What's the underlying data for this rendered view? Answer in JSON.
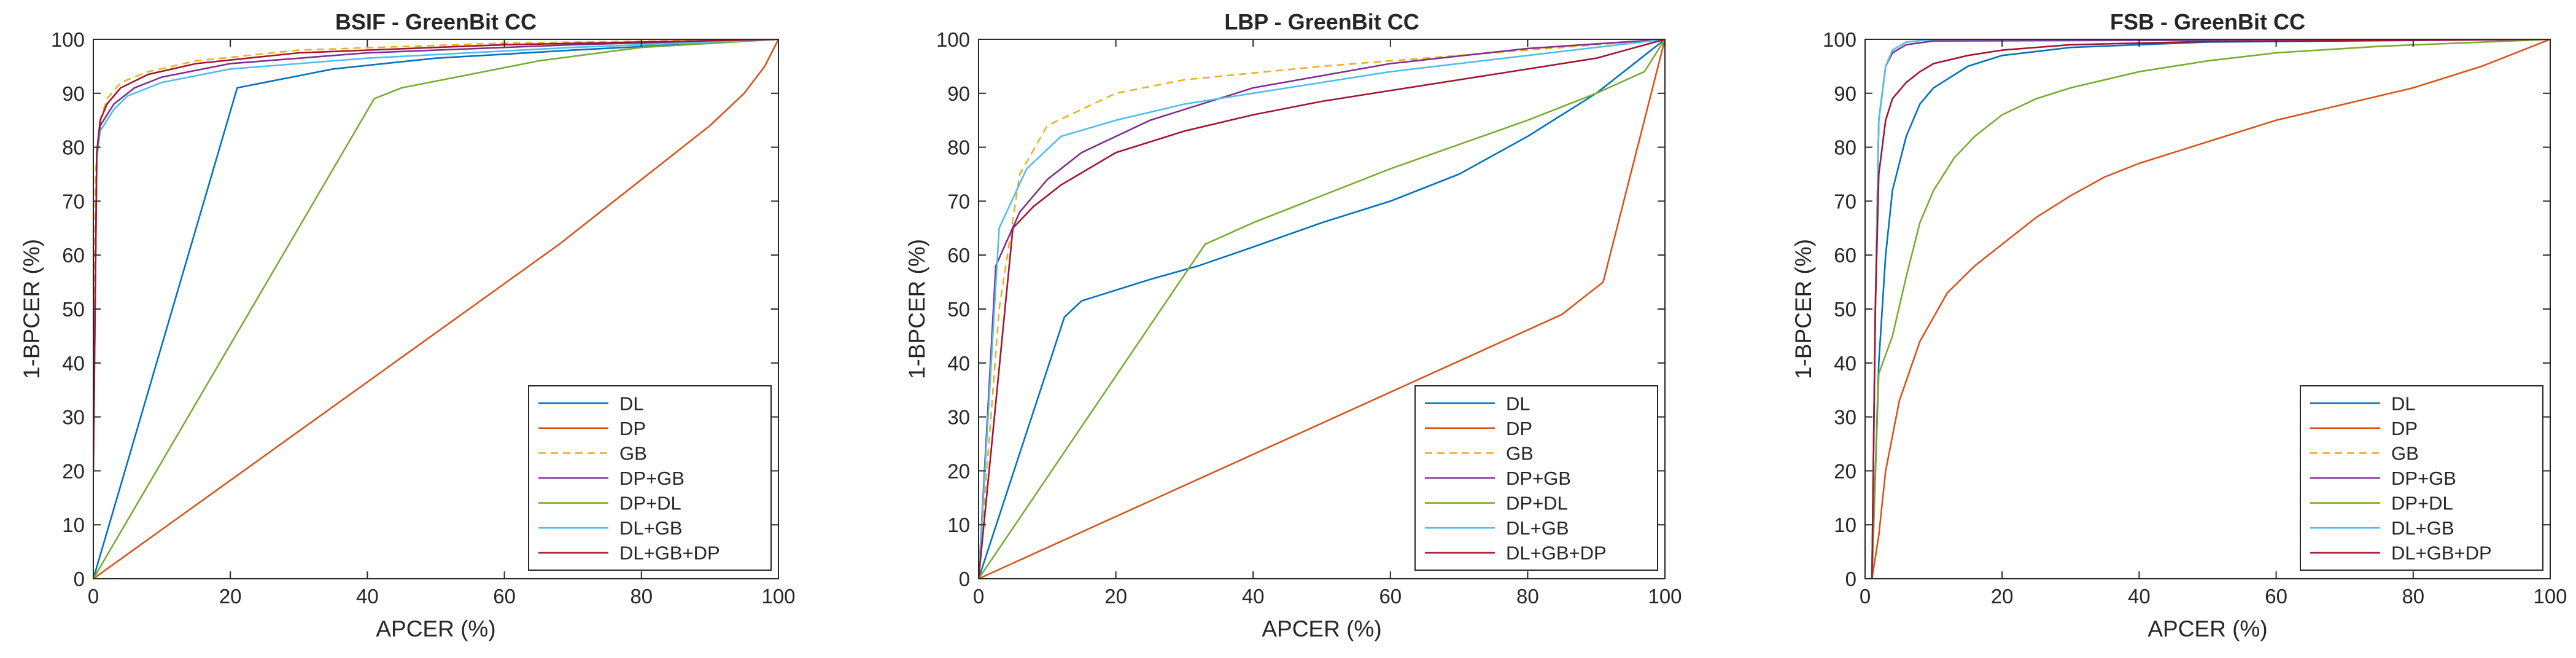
{
  "chart_data": [
    {
      "type": "line",
      "title": "BSIF - GreenBit CC",
      "xlabel": "APCER (%)",
      "ylabel": "1-BPCER (%)",
      "xlim": [
        0,
        100
      ],
      "ylim": [
        0,
        100
      ],
      "xticks": [
        0,
        20,
        40,
        60,
        80,
        100
      ],
      "yticks": [
        0,
        10,
        20,
        30,
        40,
        50,
        60,
        70,
        80,
        90,
        100
      ],
      "legend_position": "bottom-right",
      "series": [
        {
          "name": "DL",
          "color": "#0072BD",
          "dash": false,
          "points": [
            [
              0,
              0
            ],
            [
              21,
              91
            ],
            [
              25,
              92
            ],
            [
              35,
              94.5
            ],
            [
              50,
              96.5
            ],
            [
              70,
              98
            ],
            [
              100,
              100
            ]
          ]
        },
        {
          "name": "DP",
          "color": "#D95319",
          "dash": false,
          "points": [
            [
              0,
              0
            ],
            [
              68,
              62
            ],
            [
              75,
              69
            ],
            [
              80,
              74
            ],
            [
              85,
              79
            ],
            [
              90,
              84
            ],
            [
              95,
              90
            ],
            [
              98,
              95
            ],
            [
              100,
              100
            ]
          ]
        },
        {
          "name": "GB",
          "color": "#EDB120",
          "dash": true,
          "points": [
            [
              0,
              30
            ],
            [
              0.3,
              75
            ],
            [
              1,
              85
            ],
            [
              2,
              89
            ],
            [
              4,
              92
            ],
            [
              8,
              94
            ],
            [
              15,
              96
            ],
            [
              30,
              98
            ],
            [
              60,
              99.3
            ],
            [
              100,
              100
            ]
          ]
        },
        {
          "name": "DP+GB",
          "color": "#7E2F8E",
          "dash": false,
          "points": [
            [
              0,
              20
            ],
            [
              0.5,
              78
            ],
            [
              1,
              84
            ],
            [
              3,
              88
            ],
            [
              6,
              91
            ],
            [
              10,
              93
            ],
            [
              20,
              95.5
            ],
            [
              40,
              97.5
            ],
            [
              70,
              99
            ],
            [
              100,
              100
            ]
          ]
        },
        {
          "name": "DP+DL",
          "color": "#77AC30",
          "dash": false,
          "points": [
            [
              0,
              0
            ],
            [
              41,
              89
            ],
            [
              45,
              91
            ],
            [
              55,
              93.5
            ],
            [
              65,
              96
            ],
            [
              80,
              98.5
            ],
            [
              100,
              100
            ]
          ]
        },
        {
          "name": "DL+GB",
          "color": "#4DBEEE",
          "dash": false,
          "points": [
            [
              0,
              25
            ],
            [
              0.5,
              78
            ],
            [
              1,
              83
            ],
            [
              3,
              87
            ],
            [
              5,
              89.5
            ],
            [
              10,
              92
            ],
            [
              20,
              94.5
            ],
            [
              40,
              96.5
            ],
            [
              70,
              98.5
            ],
            [
              100,
              100
            ]
          ]
        },
        {
          "name": "DL+GB+DP",
          "color": "#A2142F",
          "dash": false,
          "points": [
            [
              0,
              20
            ],
            [
              0.5,
              79
            ],
            [
              1,
              85
            ],
            [
              2,
              88
            ],
            [
              4,
              91
            ],
            [
              8,
              93.5
            ],
            [
              15,
              95.5
            ],
            [
              30,
              97.5
            ],
            [
              60,
              99
            ],
            [
              100,
              100
            ]
          ]
        }
      ]
    },
    {
      "type": "line",
      "title": "LBP - GreenBit CC",
      "xlabel": "APCER (%)",
      "ylabel": "1-BPCER (%)",
      "xlim": [
        0,
        100
      ],
      "ylim": [
        0,
        100
      ],
      "xticks": [
        0,
        20,
        40,
        60,
        80,
        100
      ],
      "yticks": [
        0,
        10,
        20,
        30,
        40,
        50,
        60,
        70,
        80,
        90,
        100
      ],
      "legend_position": "bottom-right",
      "series": [
        {
          "name": "DL",
          "color": "#0072BD",
          "dash": false,
          "points": [
            [
              0,
              0
            ],
            [
              12.5,
              48.5
            ],
            [
              15,
              51.5
            ],
            [
              25,
              55.5
            ],
            [
              32,
              58
            ],
            [
              40,
              61.5
            ],
            [
              50,
              66
            ],
            [
              60,
              70
            ],
            [
              70,
              75
            ],
            [
              80,
              82
            ],
            [
              90,
              90
            ],
            [
              100,
              100
            ]
          ]
        },
        {
          "name": "DP",
          "color": "#D95319",
          "dash": false,
          "points": [
            [
              0,
              0
            ],
            [
              85,
              49
            ],
            [
              88,
              52
            ],
            [
              91,
              55
            ],
            [
              100,
              100
            ]
          ]
        },
        {
          "name": "GB",
          "color": "#EDB120",
          "dash": true,
          "points": [
            [
              0,
              0
            ],
            [
              3,
              50
            ],
            [
              6,
              75
            ],
            [
              10,
              84
            ],
            [
              20,
              90
            ],
            [
              30,
              92.5
            ],
            [
              50,
              95
            ],
            [
              70,
              97
            ],
            [
              85,
              98.5
            ],
            [
              100,
              100
            ]
          ]
        },
        {
          "name": "DP+GB",
          "color": "#7E2F8E",
          "dash": false,
          "points": [
            [
              0,
              0
            ],
            [
              2.5,
              58
            ],
            [
              6,
              68
            ],
            [
              10,
              74
            ],
            [
              15,
              79
            ],
            [
              25,
              85
            ],
            [
              40,
              91
            ],
            [
              60,
              95.5
            ],
            [
              80,
              98.3
            ],
            [
              100,
              100
            ]
          ]
        },
        {
          "name": "DP+DL",
          "color": "#77AC30",
          "dash": false,
          "points": [
            [
              0,
              0
            ],
            [
              33,
              62
            ],
            [
              40,
              66
            ],
            [
              50,
              71
            ],
            [
              60,
              76
            ],
            [
              70,
              80.5
            ],
            [
              80,
              85
            ],
            [
              90,
              90
            ],
            [
              97,
              94
            ],
            [
              100,
              100
            ]
          ]
        },
        {
          "name": "DL+GB",
          "color": "#4DBEEE",
          "dash": false,
          "points": [
            [
              0,
              0
            ],
            [
              3,
              65
            ],
            [
              7,
              76
            ],
            [
              12,
              82
            ],
            [
              20,
              85
            ],
            [
              30,
              88
            ],
            [
              45,
              91
            ],
            [
              60,
              94
            ],
            [
              80,
              97
            ],
            [
              100,
              100
            ]
          ]
        },
        {
          "name": "DL+GB+DP",
          "color": "#A2142F",
          "dash": false,
          "points": [
            [
              0,
              0
            ],
            [
              5,
              65
            ],
            [
              8,
              69
            ],
            [
              12,
              73
            ],
            [
              20,
              79
            ],
            [
              30,
              83
            ],
            [
              40,
              86
            ],
            [
              50,
              88.5
            ],
            [
              60,
              90.5
            ],
            [
              75,
              93.5
            ],
            [
              90,
              96.5
            ],
            [
              100,
              100
            ]
          ]
        }
      ]
    },
    {
      "type": "line",
      "title": "FSB - GreenBit CC",
      "xlabel": "APCER (%)",
      "ylabel": "1-BPCER (%)",
      "xlim": [
        0,
        100
      ],
      "ylim": [
        0,
        100
      ],
      "xticks": [
        0,
        20,
        40,
        60,
        80,
        100
      ],
      "yticks": [
        0,
        10,
        20,
        30,
        40,
        50,
        60,
        70,
        80,
        90,
        100
      ],
      "legend_position": "bottom-right",
      "series": [
        {
          "name": "DL",
          "color": "#0072BD",
          "dash": false,
          "points": [
            [
              1,
              0
            ],
            [
              2,
              40
            ],
            [
              3,
              60
            ],
            [
              4,
              72
            ],
            [
              6,
              82
            ],
            [
              8,
              88
            ],
            [
              10,
              91
            ],
            [
              15,
              95
            ],
            [
              20,
              97
            ],
            [
              30,
              98.5
            ],
            [
              50,
              99.5
            ],
            [
              100,
              100
            ]
          ]
        },
        {
          "name": "DP",
          "color": "#D95319",
          "dash": false,
          "points": [
            [
              1,
              0
            ],
            [
              2,
              8
            ],
            [
              3,
              20
            ],
            [
              5,
              33
            ],
            [
              8,
              44
            ],
            [
              12,
              53
            ],
            [
              16,
              58
            ],
            [
              20,
              62
            ],
            [
              25,
              67
            ],
            [
              30,
              71
            ],
            [
              35,
              74.5
            ],
            [
              40,
              77
            ],
            [
              50,
              81
            ],
            [
              60,
              85
            ],
            [
              70,
              88
            ],
            [
              80,
              91
            ],
            [
              90,
              95
            ],
            [
              100,
              100
            ]
          ]
        },
        {
          "name": "GB",
          "color": "#EDB120",
          "dash": true,
          "points": [
            [
              1,
              0
            ],
            [
              1.5,
              50
            ],
            [
              2,
              85
            ],
            [
              3,
              95
            ],
            [
              4,
              98
            ],
            [
              6,
              99.5
            ],
            [
              10,
              100
            ],
            [
              100,
              100
            ]
          ]
        },
        {
          "name": "DP+GB",
          "color": "#7E2F8E",
          "dash": false,
          "points": [
            [
              1,
              0
            ],
            [
              1.5,
              50
            ],
            [
              2,
              85
            ],
            [
              3,
              95
            ],
            [
              4,
              97.5
            ],
            [
              6,
              99
            ],
            [
              10,
              99.7
            ],
            [
              100,
              100
            ]
          ]
        },
        {
          "name": "DP+DL",
          "color": "#77AC30",
          "dash": false,
          "points": [
            [
              1,
              0
            ],
            [
              2,
              38
            ],
            [
              4,
              45
            ],
            [
              6,
              56
            ],
            [
              8,
              66
            ],
            [
              10,
              72
            ],
            [
              13,
              78
            ],
            [
              16,
              82
            ],
            [
              20,
              86
            ],
            [
              25,
              89
            ],
            [
              30,
              91
            ],
            [
              40,
              94
            ],
            [
              50,
              96
            ],
            [
              60,
              97.5
            ],
            [
              75,
              98.7
            ],
            [
              100,
              100
            ]
          ]
        },
        {
          "name": "DL+GB",
          "color": "#4DBEEE",
          "dash": false,
          "points": [
            [
              1,
              0
            ],
            [
              1.5,
              50
            ],
            [
              2,
              85
            ],
            [
              3,
              95
            ],
            [
              4,
              98
            ],
            [
              6,
              99.5
            ],
            [
              10,
              100
            ],
            [
              100,
              100
            ]
          ]
        },
        {
          "name": "DL+GB+DP",
          "color": "#A2142F",
          "dash": false,
          "points": [
            [
              1,
              0
            ],
            [
              1.5,
              50
            ],
            [
              2,
              75
            ],
            [
              3,
              85
            ],
            [
              4,
              89
            ],
            [
              6,
              92
            ],
            [
              8,
              94
            ],
            [
              10,
              95.5
            ],
            [
              15,
              97
            ],
            [
              20,
              98
            ],
            [
              30,
              99
            ],
            [
              50,
              99.6
            ],
            [
              100,
              100
            ]
          ]
        }
      ]
    }
  ]
}
